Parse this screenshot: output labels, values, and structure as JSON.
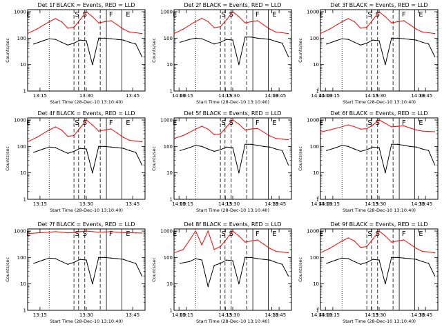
{
  "colors": {
    "events": "#000000",
    "lld": "#ff0000",
    "background": "#ffffff"
  },
  "common": {
    "xlabel": "Start Time (28-Dec-10 13:10:40)",
    "ylabel": "Counts/sec",
    "x_tick_labels": [
      "13:15",
      "13:30",
      "13:45",
      "14:00",
      "14:15",
      "14:30",
      "14:45"
    ],
    "y_tick_labels": [
      "1",
      "10",
      "100",
      "1000"
    ],
    "x_range_minutes": [
      11,
      49
    ],
    "y_range_log": [
      1,
      1200
    ],
    "y_scale": "log"
  },
  "chart_data": [
    {
      "type": "line",
      "title": "Det 1f BLACK = Events, RED = LLD",
      "series": [
        {
          "name": "Events",
          "color": "#000000",
          "x": [
            13,
            16,
            18,
            20,
            22,
            24,
            26,
            28,
            30,
            32,
            34,
            36,
            38,
            40,
            42,
            44,
            46,
            48
          ],
          "y": [
            60,
            80,
            95,
            90,
            70,
            55,
            65,
            85,
            80,
            10,
            100,
            100,
            95,
            90,
            85,
            70,
            60,
            20
          ]
        },
        {
          "name": "LLD",
          "color": "#ff0000",
          "x": [
            11,
            14,
            18,
            20,
            22,
            24,
            26,
            28,
            30,
            32,
            34,
            36,
            38,
            40,
            42,
            44,
            46,
            48
          ],
          "y": [
            150,
            220,
            420,
            550,
            420,
            240,
            260,
            500,
            1000,
            650,
            380,
            420,
            460,
            320,
            220,
            170,
            160,
            150
          ]
        }
      ],
      "markers": [
        {
          "label": "E",
          "x": 11.3
        },
        {
          "label": "S",
          "x": 27
        },
        {
          "label": "S",
          "x": 29.5
        },
        {
          "label": "F",
          "x": 38
        },
        {
          "label": "E",
          "x": 43.5
        }
      ],
      "solid_lines": [
        36.5,
        41.5
      ],
      "dashed_lines": [
        26,
        27.5,
        29.5,
        34.5
      ],
      "dotted_lines": [
        18
      ]
    },
    {
      "type": "line",
      "title": "Det 2f BLACK = Events, RED = LLD",
      "series": [
        {
          "name": "Events",
          "color": "#000000",
          "x": [
            13,
            16,
            18,
            20,
            22,
            24,
            26,
            28,
            30,
            32,
            34,
            36,
            38,
            40,
            42,
            44,
            46,
            48
          ],
          "y": [
            70,
            90,
            100,
            95,
            75,
            60,
            70,
            90,
            85,
            10,
            110,
            110,
            100,
            95,
            90,
            75,
            65,
            20
          ]
        },
        {
          "name": "LLD",
          "color": "#ff0000",
          "x": [
            11,
            14,
            18,
            20,
            22,
            24,
            26,
            28,
            30,
            32,
            34,
            36,
            38,
            40,
            42,
            44,
            46,
            48
          ],
          "y": [
            150,
            220,
            430,
            560,
            430,
            250,
            270,
            500,
            1000,
            650,
            380,
            420,
            460,
            320,
            220,
            170,
            160,
            150
          ]
        }
      ],
      "markers": [
        {
          "label": "E",
          "x": 11.3
        },
        {
          "label": "S",
          "x": 27
        },
        {
          "label": "S",
          "x": 29.5
        },
        {
          "label": "F",
          "x": 38
        },
        {
          "label": "E",
          "x": 43.5
        }
      ],
      "solid_lines": [
        36.5,
        41.5
      ],
      "dashed_lines": [
        26,
        27.5,
        29.5,
        34.5
      ],
      "dotted_lines": [
        18
      ]
    },
    {
      "type": "line",
      "title": "Det 3f BLACK = Events, RED = LLD",
      "series": [
        {
          "name": "Events",
          "color": "#000000",
          "x": [
            13,
            16,
            18,
            20,
            22,
            24,
            26,
            28,
            30,
            32,
            34,
            36,
            38,
            40,
            42,
            44,
            46,
            48
          ],
          "y": [
            60,
            80,
            95,
            90,
            70,
            55,
            65,
            85,
            80,
            10,
            100,
            100,
            95,
            90,
            85,
            70,
            60,
            20
          ]
        },
        {
          "name": "LLD",
          "color": "#ff0000",
          "x": [
            11,
            14,
            18,
            20,
            22,
            24,
            26,
            28,
            30,
            32,
            34,
            36,
            38,
            40,
            42,
            44,
            46,
            48
          ],
          "y": [
            150,
            220,
            420,
            550,
            420,
            240,
            260,
            500,
            1000,
            650,
            380,
            420,
            460,
            320,
            220,
            170,
            160,
            150
          ]
        }
      ],
      "markers": [
        {
          "label": "E",
          "x": 11.3
        },
        {
          "label": "S",
          "x": 27
        },
        {
          "label": "S",
          "x": 29.5
        },
        {
          "label": "F",
          "x": 38
        },
        {
          "label": "E",
          "x": 43.5
        }
      ],
      "solid_lines": [
        36.5,
        41.5
      ],
      "dashed_lines": [
        26,
        27.5,
        29.5,
        34.5
      ],
      "dotted_lines": [
        18
      ]
    },
    {
      "type": "line",
      "title": "Det 4f BLACK = Events, RED = LLD",
      "series": [
        {
          "name": "Events",
          "color": "#000000",
          "x": [
            13,
            16,
            18,
            20,
            22,
            24,
            26,
            28,
            30,
            32,
            34,
            36,
            38,
            40,
            42,
            44,
            46,
            48
          ],
          "y": [
            60,
            80,
            95,
            90,
            70,
            55,
            65,
            85,
            80,
            10,
            100,
            100,
            95,
            90,
            85,
            70,
            60,
            20
          ]
        },
        {
          "name": "LLD",
          "color": "#ff0000",
          "x": [
            11,
            14,
            18,
            20,
            22,
            24,
            26,
            28,
            30,
            32,
            34,
            36,
            38,
            40,
            42,
            44,
            46,
            48
          ],
          "y": [
            150,
            220,
            420,
            550,
            420,
            240,
            260,
            500,
            1000,
            650,
            380,
            420,
            460,
            320,
            220,
            170,
            160,
            150
          ]
        }
      ],
      "markers": [
        {
          "label": "E",
          "x": 11.3
        },
        {
          "label": "S",
          "x": 27
        },
        {
          "label": "S",
          "x": 29.5
        },
        {
          "label": "F",
          "x": 38
        },
        {
          "label": "E",
          "x": 43.5
        }
      ],
      "solid_lines": [
        36.5,
        41.5
      ],
      "dashed_lines": [
        26,
        27.5,
        29.5,
        34.5
      ],
      "dotted_lines": [
        18
      ]
    },
    {
      "type": "line",
      "title": "Det 5f BLACK = Events, RED = LLD",
      "series": [
        {
          "name": "Events",
          "color": "#000000",
          "x": [
            13,
            16,
            18,
            20,
            22,
            24,
            26,
            28,
            30,
            32,
            34,
            36,
            38,
            40,
            42,
            44,
            46,
            48
          ],
          "y": [
            70,
            90,
            110,
            100,
            80,
            65,
            75,
            95,
            90,
            10,
            120,
            120,
            110,
            100,
            95,
            80,
            70,
            20
          ]
        },
        {
          "name": "LLD",
          "color": "#ff0000",
          "x": [
            11,
            14,
            18,
            20,
            22,
            24,
            26,
            28,
            30,
            32,
            34,
            36,
            38,
            40,
            42,
            44,
            46,
            48
          ],
          "y": [
            200,
            260,
            450,
            580,
            450,
            280,
            300,
            550,
            1000,
            700,
            420,
            460,
            480,
            350,
            250,
            200,
            190,
            180
          ]
        }
      ],
      "markers": [
        {
          "label": "E",
          "x": 11.3
        },
        {
          "label": "S",
          "x": 27
        },
        {
          "label": "S",
          "x": 29.5
        },
        {
          "label": "F",
          "x": 38
        },
        {
          "label": "E",
          "x": 43.5
        }
      ],
      "solid_lines": [
        36.5,
        41.5
      ],
      "dashed_lines": [
        26,
        27.5,
        29.5,
        34.5
      ],
      "dotted_lines": [
        18
      ]
    },
    {
      "type": "line",
      "title": "Det 6f BLACK = Events, RED = LLD",
      "series": [
        {
          "name": "Events",
          "color": "#000000",
          "x": [
            13,
            16,
            18,
            20,
            22,
            24,
            26,
            28,
            30,
            32,
            34,
            36,
            38,
            40,
            42,
            44,
            46,
            48
          ],
          "y": [
            70,
            90,
            110,
            100,
            80,
            65,
            75,
            95,
            90,
            10,
            120,
            120,
            110,
            100,
            95,
            80,
            70,
            20
          ]
        },
        {
          "name": "LLD",
          "color": "#ff0000",
          "x": [
            11,
            14,
            18,
            20,
            22,
            24,
            26,
            28,
            30,
            32,
            34,
            36,
            38,
            40,
            42,
            44,
            46,
            48
          ],
          "y": [
            350,
            420,
            560,
            650,
            560,
            450,
            470,
            650,
            1000,
            750,
            550,
            580,
            600,
            500,
            420,
            380,
            370,
            360
          ]
        }
      ],
      "markers": [
        {
          "label": "E",
          "x": 11.3
        },
        {
          "label": "S",
          "x": 27
        },
        {
          "label": "S",
          "x": 29.5
        },
        {
          "label": "F",
          "x": 38
        },
        {
          "label": "E",
          "x": 43.5
        }
      ],
      "solid_lines": [
        36.5,
        41.5
      ],
      "dashed_lines": [
        26,
        27.5,
        29.5,
        34.5
      ],
      "dotted_lines": [
        18
      ]
    },
    {
      "type": "line",
      "title": "Det 7f BLACK = Events, RED = LLD",
      "series": [
        {
          "name": "Events",
          "color": "#000000",
          "x": [
            13,
            16,
            18,
            20,
            22,
            24,
            26,
            28,
            30,
            32,
            34,
            36,
            38,
            40,
            42,
            44,
            46,
            48
          ],
          "y": [
            60,
            80,
            95,
            90,
            70,
            55,
            65,
            85,
            80,
            10,
            100,
            100,
            95,
            90,
            85,
            70,
            60,
            20
          ]
        },
        {
          "name": "LLD",
          "color": "#ff0000",
          "x": [
            11,
            14,
            18,
            20,
            22,
            24,
            26,
            28,
            30,
            32,
            34,
            36,
            38,
            40,
            42,
            44,
            46,
            48
          ],
          "y": [
            800,
            850,
            900,
            950,
            900,
            850,
            880,
            950,
            1000,
            950,
            900,
            920,
            950,
            900,
            880,
            860,
            850,
            840
          ]
        }
      ],
      "markers": [
        {
          "label": "E",
          "x": 11.3
        },
        {
          "label": "S",
          "x": 27
        },
        {
          "label": "S",
          "x": 29.5
        },
        {
          "label": "F",
          "x": 38
        },
        {
          "label": "E",
          "x": 43.5
        }
      ],
      "solid_lines": [
        36.5,
        41.5
      ],
      "dashed_lines": [
        26,
        27.5,
        29.5,
        34.5
      ],
      "dotted_lines": [
        18
      ]
    },
    {
      "type": "line",
      "title": "Det 8f BLACK = Events, RED = LLD",
      "series": [
        {
          "name": "Events",
          "color": "#000000",
          "x": [
            13,
            16,
            18,
            20,
            22,
            24,
            26,
            28,
            30,
            32,
            34,
            36,
            38,
            40,
            42,
            44,
            46,
            48
          ],
          "y": [
            60,
            70,
            90,
            80,
            8,
            50,
            60,
            80,
            75,
            10,
            100,
            100,
            90,
            85,
            80,
            65,
            55,
            20
          ]
        },
        {
          "name": "LLD",
          "color": "#ff0000",
          "x": [
            11,
            14,
            18,
            20,
            22,
            24,
            26,
            28,
            30,
            32,
            34,
            36,
            38,
            40,
            42,
            44,
            46,
            48
          ],
          "y": [
            150,
            200,
            1000,
            300,
            1000,
            200,
            260,
            500,
            1000,
            650,
            380,
            420,
            460,
            320,
            220,
            170,
            160,
            150
          ]
        }
      ],
      "markers": [
        {
          "label": "E",
          "x": 11.3
        },
        {
          "label": "S",
          "x": 27
        },
        {
          "label": "S",
          "x": 29.5
        },
        {
          "label": "F",
          "x": 38
        },
        {
          "label": "E",
          "x": 43.5
        }
      ],
      "solid_lines": [
        36.5,
        41.5
      ],
      "dashed_lines": [
        26,
        27.5,
        29.5,
        34.5
      ],
      "dotted_lines": [
        18
      ]
    },
    {
      "type": "line",
      "title": "Det 9f BLACK = Events, RED = LLD",
      "series": [
        {
          "name": "Events",
          "color": "#000000",
          "x": [
            13,
            16,
            18,
            20,
            22,
            24,
            26,
            28,
            30,
            32,
            34,
            36,
            38,
            40,
            42,
            44,
            46,
            48
          ],
          "y": [
            60,
            80,
            95,
            90,
            70,
            55,
            65,
            85,
            80,
            10,
            100,
            100,
            95,
            90,
            85,
            70,
            60,
            20
          ]
        },
        {
          "name": "LLD",
          "color": "#ff0000",
          "x": [
            11,
            14,
            18,
            20,
            22,
            24,
            26,
            28,
            30,
            32,
            34,
            36,
            38,
            40,
            42,
            44,
            46,
            48
          ],
          "y": [
            150,
            220,
            420,
            550,
            420,
            240,
            260,
            500,
            1000,
            650,
            380,
            420,
            460,
            320,
            220,
            170,
            160,
            150
          ]
        }
      ],
      "markers": [
        {
          "label": "E",
          "x": 11.3
        },
        {
          "label": "S",
          "x": 27
        },
        {
          "label": "S",
          "x": 29.5
        },
        {
          "label": "F",
          "x": 38
        },
        {
          "label": "E",
          "x": 43.5
        }
      ],
      "solid_lines": [
        36.5,
        41.5
      ],
      "dashed_lines": [
        26,
        27.5,
        29.5,
        34.5
      ],
      "dotted_lines": [
        18
      ]
    }
  ]
}
